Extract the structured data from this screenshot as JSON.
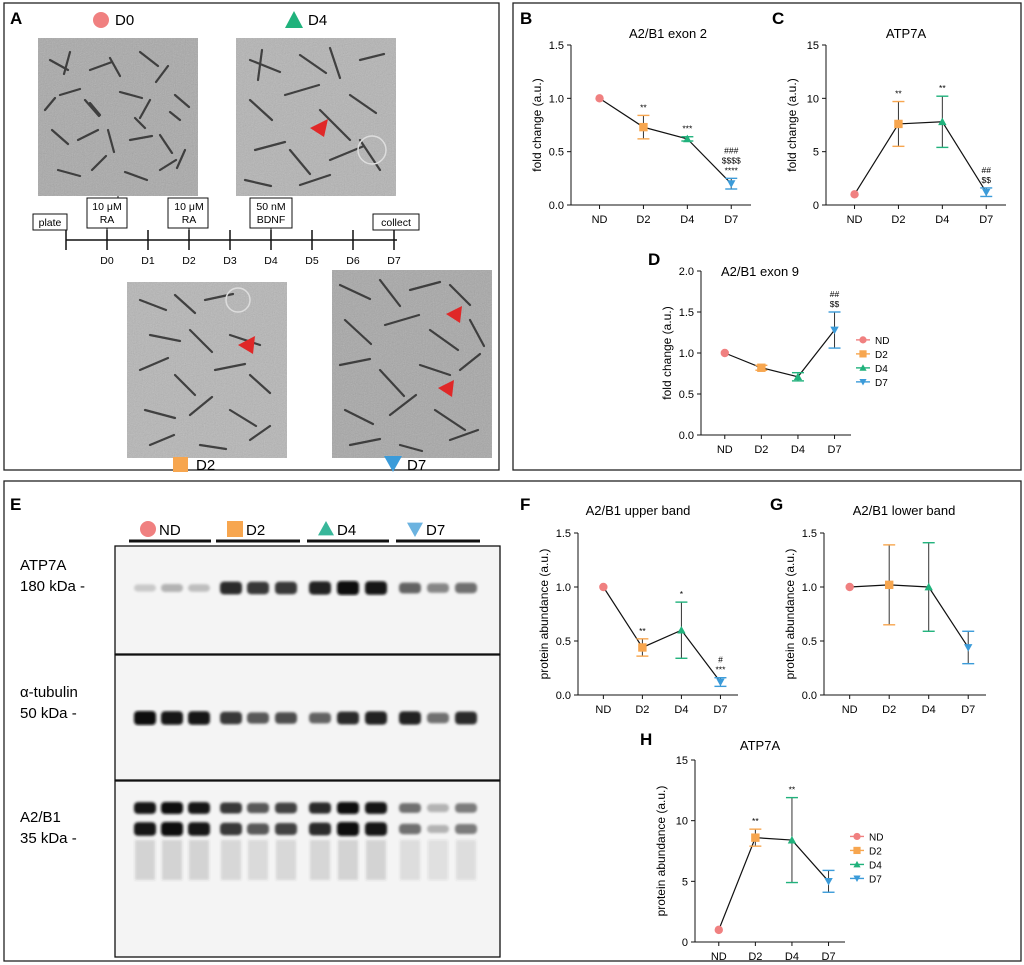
{
  "panel_a": {
    "label": "A",
    "markers": [
      {
        "name": "D0",
        "shape": "circle",
        "color": "#f08080"
      },
      {
        "name": "D4",
        "shape": "triangle-up",
        "color": "#20b27c"
      },
      {
        "name": "D2",
        "shape": "square",
        "color": "#f7a64f"
      },
      {
        "name": "D7",
        "shape": "triangle-down",
        "color": "#3b9bd9"
      }
    ],
    "timeline": {
      "ticks": [
        "D0",
        "D1",
        "D2",
        "D3",
        "D4",
        "D5",
        "D6",
        "D7"
      ],
      "boxes": [
        {
          "lines": [
            "plate"
          ]
        },
        {
          "lines": [
            "10 μM",
            "RA"
          ]
        },
        {
          "lines": [
            "10 μM",
            "RA"
          ]
        },
        {
          "lines": [
            "50 nM",
            "BDNF"
          ]
        },
        {
          "lines": [
            "collect"
          ]
        }
      ]
    }
  },
  "panel_e": {
    "label": "E",
    "groups": [
      {
        "name": "ND",
        "shape": "circle",
        "color": "#f08080"
      },
      {
        "name": "D2",
        "shape": "square",
        "color": "#f7a64f"
      },
      {
        "name": "D4",
        "shape": "triangle-up",
        "color": "#38b79a"
      },
      {
        "name": "D7",
        "shape": "triangle-down",
        "color": "#6cb3e0"
      }
    ],
    "blots": [
      {
        "name": "ATP7A",
        "size": "180 kDa -",
        "band_intensity": [
          0.15,
          0.25,
          0.2,
          0.85,
          0.8,
          0.8,
          0.9,
          1.0,
          0.95,
          0.6,
          0.45,
          0.55
        ]
      },
      {
        "name": "α-tubulin",
        "size": "50 kDa -",
        "band_intensity": [
          1.0,
          0.95,
          0.95,
          0.8,
          0.65,
          0.7,
          0.6,
          0.85,
          0.9,
          0.9,
          0.55,
          0.85
        ]
      },
      {
        "name": "A2/B1",
        "size": "35 kDa -",
        "band_intensity": [
          0.95,
          1.0,
          0.95,
          0.8,
          0.65,
          0.75,
          0.85,
          1.0,
          0.95,
          0.55,
          0.25,
          0.5
        ]
      }
    ]
  },
  "chart_data": [
    {
      "id": "B",
      "type": "line",
      "title": "A2/B1 exon 2",
      "xlabel": "",
      "ylabel": "fold change (a.u.)",
      "categories": [
        "ND",
        "D2",
        "D4",
        "D7"
      ],
      "values": [
        1.0,
        0.73,
        0.62,
        0.2
      ],
      "errors": [
        0,
        0.11,
        0.02,
        0.05
      ],
      "ylim": [
        0,
        1.5
      ],
      "yticks": [
        "0.0",
        "0.5",
        "1.0",
        "1.5"
      ],
      "annotations": [
        [],
        [
          "**"
        ],
        [
          "***"
        ],
        [
          "###",
          "$$$$",
          "****"
        ]
      ]
    },
    {
      "id": "C",
      "type": "line",
      "title": "ATP7A",
      "xlabel": "",
      "ylabel": "fold change (a.u.)",
      "categories": [
        "ND",
        "D2",
        "D4",
        "D7"
      ],
      "values": [
        1.0,
        7.6,
        7.8,
        1.2
      ],
      "errors": [
        0,
        2.1,
        2.4,
        0.4
      ],
      "ylim": [
        0,
        15
      ],
      "yticks": [
        "0",
        "5",
        "10",
        "15"
      ],
      "annotations": [
        [],
        [
          "**"
        ],
        [
          "**"
        ],
        [
          "##",
          "$$"
        ]
      ]
    },
    {
      "id": "D",
      "type": "line",
      "title": "A2/B1 exon 9",
      "xlabel": "",
      "ylabel": "fold change (a.u.)",
      "categories": [
        "ND",
        "D2",
        "D4",
        "D7"
      ],
      "values": [
        1.0,
        0.82,
        0.71,
        1.28
      ],
      "errors": [
        0,
        0.03,
        0.05,
        0.22
      ],
      "ylim": [
        0,
        2.0
      ],
      "yticks": [
        "0.0",
        "0.5",
        "1.0",
        "1.5",
        "2.0"
      ],
      "annotations": [
        [],
        [],
        [],
        [
          "##",
          "$$"
        ]
      ],
      "legend": [
        "ND",
        "D2",
        "D4",
        "D7"
      ],
      "legend_position": "right"
    },
    {
      "id": "F",
      "type": "line",
      "title": "A2/B1 upper band",
      "xlabel": "",
      "ylabel": "protein abundance (a.u.)",
      "categories": [
        "ND",
        "D2",
        "D4",
        "D7"
      ],
      "values": [
        1.0,
        0.44,
        0.6,
        0.12
      ],
      "errors": [
        0,
        0.08,
        0.26,
        0.04
      ],
      "ylim": [
        0,
        1.5
      ],
      "yticks": [
        "0.0",
        "0.5",
        "1.0",
        "1.5"
      ],
      "annotations": [
        [],
        [
          "**"
        ],
        [
          "*"
        ],
        [
          "#",
          "***"
        ]
      ]
    },
    {
      "id": "G",
      "type": "line",
      "title": "A2/B1 lower band",
      "xlabel": "",
      "ylabel": "protein abundance (a.u.)",
      "categories": [
        "ND",
        "D2",
        "D4",
        "D7"
      ],
      "values": [
        1.0,
        1.02,
        1.0,
        0.44
      ],
      "errors": [
        0,
        0.37,
        0.41,
        0.15
      ],
      "ylim": [
        0,
        1.5
      ],
      "yticks": [
        "0.0",
        "0.5",
        "1.0",
        "1.5"
      ],
      "annotations": [
        [],
        [],
        [],
        []
      ]
    },
    {
      "id": "H",
      "type": "line",
      "title": "ATP7A",
      "xlabel": "",
      "ylabel": "protein abundance (a.u.)",
      "categories": [
        "ND",
        "D2",
        "D4",
        "D7"
      ],
      "values": [
        1.0,
        8.6,
        8.4,
        5.0
      ],
      "errors": [
        0,
        0.7,
        3.5,
        0.9
      ],
      "ylim": [
        0,
        15
      ],
      "yticks": [
        "0",
        "5",
        "10",
        "15"
      ],
      "annotations": [
        [],
        [
          "**"
        ],
        [
          "**"
        ],
        []
      ],
      "legend": [
        "ND",
        "D2",
        "D4",
        "D7"
      ],
      "legend_position": "right"
    }
  ],
  "series_colors": [
    "#f08080",
    "#f7a64f",
    "#20b27c",
    "#3b9bd9"
  ]
}
